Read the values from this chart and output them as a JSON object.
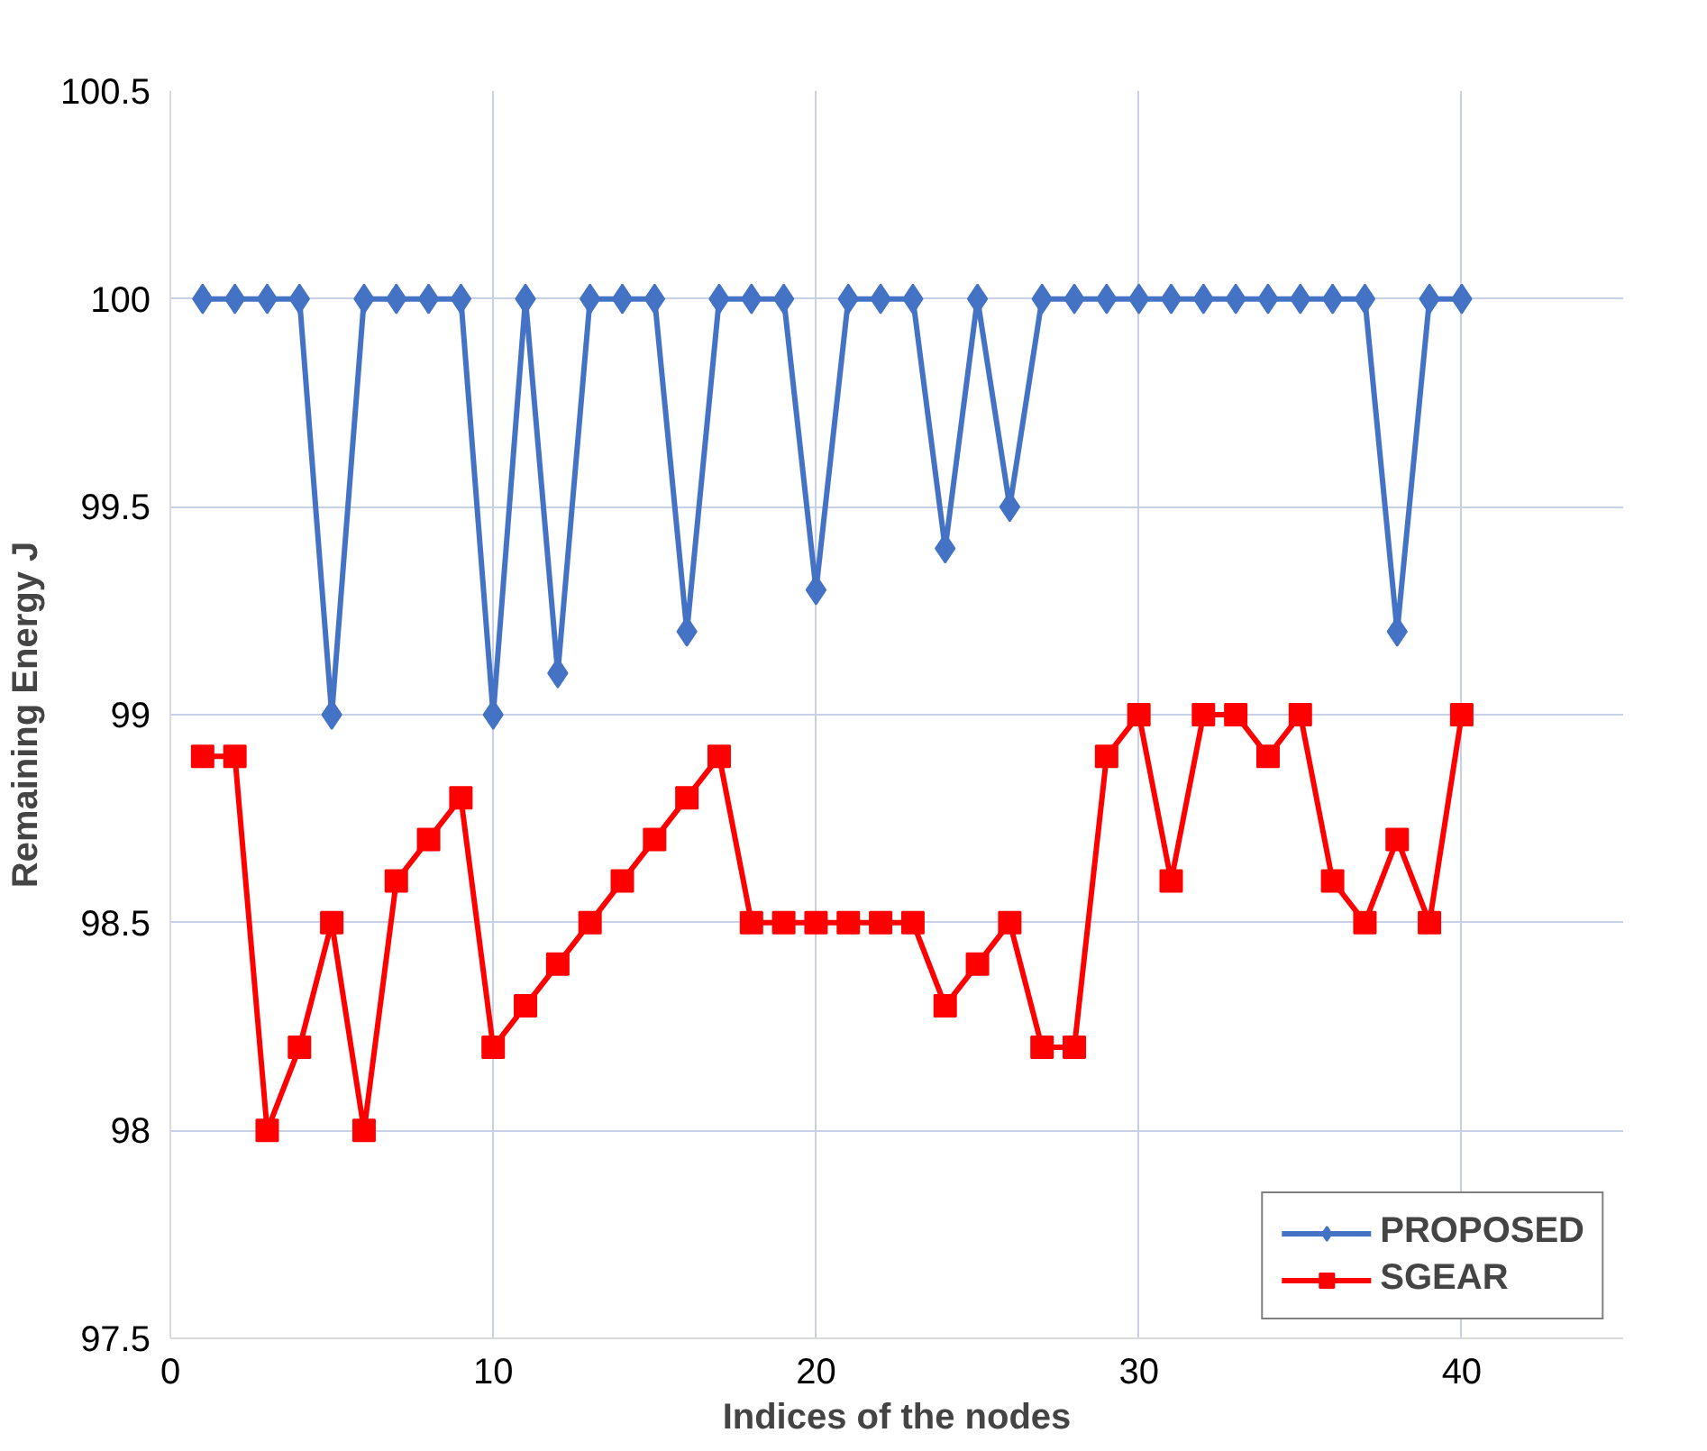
{
  "chart_data": {
    "type": "line",
    "xlabel": "Indices of the nodes",
    "ylabel": "Remaining Energy J",
    "x": [
      1,
      2,
      3,
      4,
      5,
      6,
      7,
      8,
      9,
      10,
      11,
      12,
      13,
      14,
      15,
      16,
      17,
      18,
      19,
      20,
      21,
      22,
      23,
      24,
      25,
      26,
      27,
      28,
      29,
      30,
      31,
      32,
      33,
      34,
      35,
      36,
      37,
      38,
      39,
      40
    ],
    "series": [
      {
        "name": "PROPOSED",
        "color": "#4472c4",
        "marker": "diamond",
        "values": [
          100,
          100,
          100,
          100,
          99,
          100,
          100,
          100,
          100,
          99,
          100,
          99.1,
          100,
          100,
          100,
          99.2,
          100,
          100,
          100,
          99.3,
          100,
          100,
          100,
          99.4,
          100,
          99.5,
          100,
          100,
          100,
          100,
          100,
          100,
          100,
          100,
          100,
          100,
          100,
          99.2,
          100,
          100
        ]
      },
      {
        "name": "SGEAR",
        "color": "#ff0000",
        "marker": "square",
        "values": [
          98.9,
          98.9,
          98,
          98.2,
          98.5,
          98,
          98.6,
          98.7,
          98.8,
          98.2,
          98.3,
          98.4,
          98.5,
          98.6,
          98.7,
          98.8,
          98.9,
          98.5,
          98.5,
          98.5,
          98.5,
          98.5,
          98.5,
          98.3,
          98.4,
          98.5,
          98.2,
          98.2,
          98.9,
          99,
          98.6,
          99,
          99,
          98.9,
          99,
          98.6,
          98.5,
          98.7,
          98.5,
          99
        ]
      }
    ],
    "xlim": [
      0,
      45
    ],
    "xticks": [
      0,
      10,
      20,
      30,
      40
    ],
    "ylim": [
      97.5,
      100.5
    ],
    "yticks": [
      97.5,
      98,
      98.5,
      99,
      99.5,
      100,
      100.5
    ],
    "grid": true,
    "legend": "bottom right",
    "line_style": "solid"
  }
}
